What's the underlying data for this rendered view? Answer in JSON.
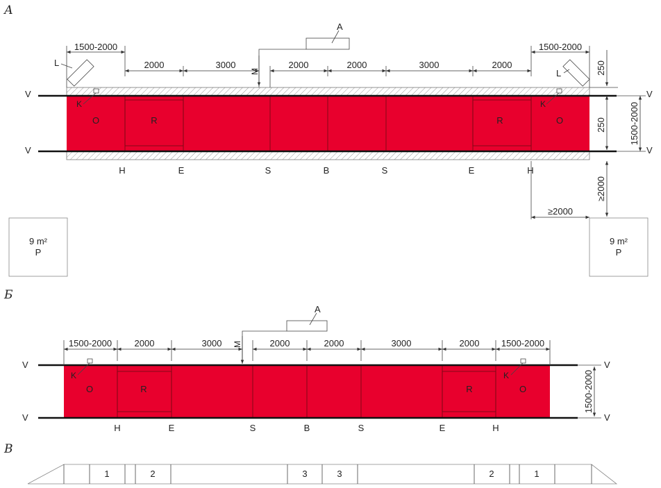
{
  "sections": {
    "a": "А",
    "b": "Б",
    "c": "В"
  },
  "colors": {
    "lane": "#e8002d",
    "line": "#111111",
    "hatch": "#999999"
  },
  "diagram_a": {
    "a_label": "A",
    "m_label": "M",
    "top_dims": [
      "1500-2000",
      "2000",
      "3000",
      "2000",
      "2000",
      "3000",
      "2000",
      "1500-2000"
    ],
    "right_dims": {
      "top": "250",
      "inner": "250",
      "width": "1500-2000"
    },
    "v_label": "V",
    "l_label": "L",
    "k_label": "K",
    "zone_labels": [
      "O",
      "R",
      "R",
      "O"
    ],
    "bottom_letters": [
      "H",
      "E",
      "S",
      "B",
      "S",
      "E",
      "H"
    ],
    "clearance": {
      "vertical": "≥2000",
      "horizontal": "≥2000"
    },
    "areas": [
      {
        "area": "9 m²",
        "code": "P"
      },
      {
        "area": "9 m²",
        "code": "P"
      }
    ]
  },
  "diagram_b": {
    "a_label": "A",
    "m_label": "M",
    "top_dims": [
      "1500-2000",
      "2000",
      "3000",
      "2000",
      "2000",
      "3000",
      "2000",
      "1500-2000"
    ],
    "width_dim": "1500-2000",
    "v_label": "V",
    "k_label": "K",
    "zone_labels": [
      "O",
      "R",
      "R",
      "O"
    ],
    "bottom_letters": [
      "H",
      "E",
      "S",
      "B",
      "S",
      "E",
      "H"
    ]
  },
  "diagram_c": {
    "numbers": [
      "1",
      "2",
      "3",
      "3",
      "2",
      "1"
    ]
  }
}
